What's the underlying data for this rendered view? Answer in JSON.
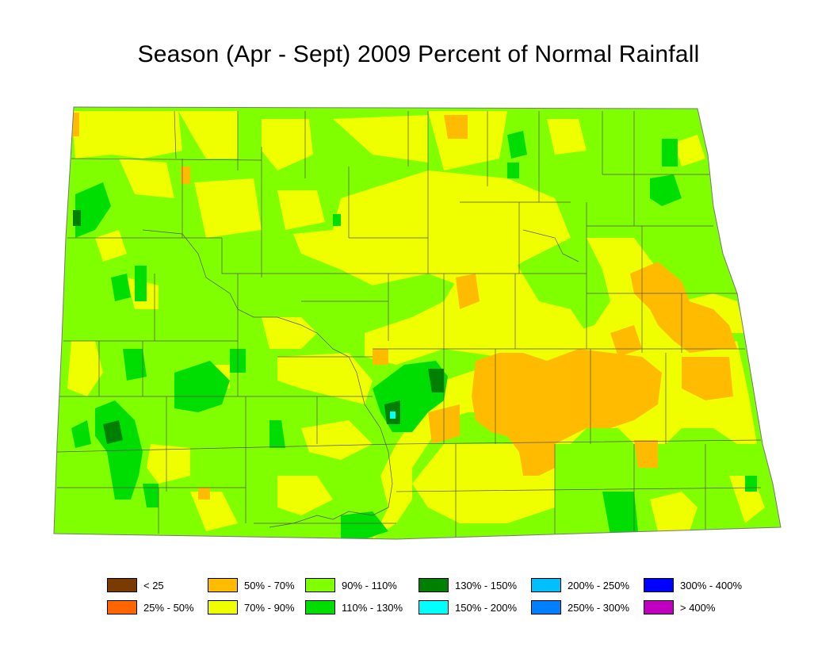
{
  "title": "Season (Apr - Sept) 2009 Percent of Normal Rainfall",
  "legend": [
    {
      "label": "< 25",
      "color": "#7a3b00"
    },
    {
      "label": "25% - 50%",
      "color": "#ff6600"
    },
    {
      "label": "50% - 70%",
      "color": "#ffbb00"
    },
    {
      "label": "70% - 90%",
      "color": "#f0ff00"
    },
    {
      "label": "90% - 110%",
      "color": "#7fff00"
    },
    {
      "label": "110% - 130%",
      "color": "#00dd00"
    },
    {
      "label": "130% - 150%",
      "color": "#008000"
    },
    {
      "label": "150% - 200%",
      "color": "#00ffff"
    },
    {
      "label": "200% - 250%",
      "color": "#00bfff"
    },
    {
      "label": "250% - 300%",
      "color": "#0080ff"
    },
    {
      "label": "300% - 400%",
      "color": "#0000ff"
    },
    {
      "label": "> 400%",
      "color": "#c000c0"
    }
  ],
  "map_colors": {
    "background": "#7fff00",
    "dry": "#f0ff00",
    "very_dry": "#ffbb00",
    "wet": "#00dd00",
    "very_wet": "#008000",
    "extreme": "#00ffff",
    "county_lines": "#555555"
  }
}
